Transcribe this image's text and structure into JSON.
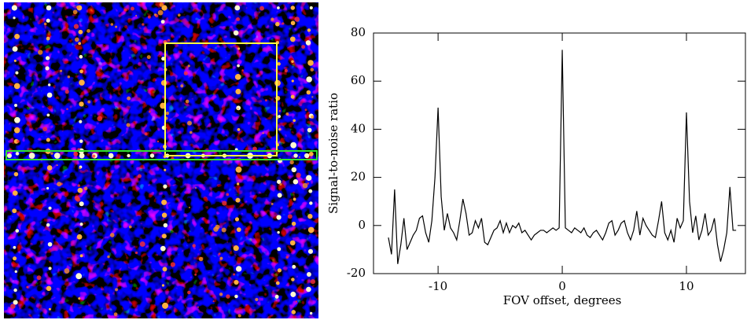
{
  "chart_data": {
    "type": "line",
    "xlabel": "FOV offset, degrees",
    "ylabel": "Signal-to-noise ratio",
    "color": "#000000",
    "xlim": [
      -15.2,
      14.75
    ],
    "xticks": [
      -10,
      0,
      10
    ],
    "ylim": [
      -20,
      80
    ],
    "yticks": [
      -20,
      0,
      20,
      40,
      60,
      80
    ],
    "x": [
      -14.0,
      -13.75,
      -13.5,
      -13.25,
      -13.0,
      -12.75,
      -12.5,
      -12.25,
      -12.0,
      -11.75,
      -11.5,
      -11.25,
      -11.0,
      -10.75,
      -10.5,
      -10.25,
      -10.0,
      -9.75,
      -9.5,
      -9.25,
      -9.0,
      -8.75,
      -8.5,
      -8.25,
      -8.0,
      -7.75,
      -7.5,
      -7.25,
      -7.0,
      -6.75,
      -6.5,
      -6.25,
      -6.0,
      -5.75,
      -5.5,
      -5.25,
      -5.0,
      -4.75,
      -4.5,
      -4.25,
      -4.0,
      -3.75,
      -3.5,
      -3.25,
      -3.0,
      -2.75,
      -2.5,
      -2.25,
      -2.0,
      -1.75,
      -1.5,
      -1.25,
      -1.0,
      -0.75,
      -0.5,
      -0.25,
      0.0,
      0.25,
      0.5,
      0.75,
      1.0,
      1.25,
      1.5,
      1.75,
      2.0,
      2.25,
      2.5,
      2.75,
      3.0,
      3.25,
      3.5,
      3.75,
      4.0,
      4.25,
      4.5,
      4.75,
      5.0,
      5.25,
      5.5,
      5.75,
      6.0,
      6.25,
      6.5,
      6.75,
      7.0,
      7.25,
      7.5,
      7.75,
      8.0,
      8.25,
      8.5,
      8.75,
      9.0,
      9.25,
      9.5,
      9.75,
      10.0,
      10.25,
      10.5,
      10.75,
      11.0,
      11.25,
      11.5,
      11.75,
      12.0,
      12.25,
      12.5,
      12.75,
      13.0,
      13.25,
      13.5,
      13.75,
      14.0
    ],
    "values": [
      -5,
      -12,
      15,
      -16,
      -8,
      3,
      -10,
      -7,
      -4,
      -2,
      3,
      4,
      -3,
      -7,
      2,
      20,
      49,
      12,
      -2,
      5,
      -1,
      -3,
      -6,
      2,
      11,
      5,
      -4,
      -3,
      2,
      -1,
      3,
      -7,
      -8,
      -5,
      -2,
      -1,
      2,
      -3,
      1,
      -3,
      0,
      -1,
      1,
      -3,
      -2,
      -4,
      -6,
      -4,
      -3,
      -2,
      -2,
      -3,
      -2,
      -1,
      -2,
      -1,
      73,
      -1,
      -2,
      -3,
      -1,
      -2,
      -3,
      -1,
      -4,
      -5,
      -3,
      -2,
      -4,
      -6,
      -3,
      1,
      2,
      -4,
      -2,
      1,
      2,
      -3,
      -6,
      -2,
      6,
      -4,
      3,
      0,
      -2,
      -4,
      -5,
      2,
      10,
      -3,
      -6,
      -2,
      -7,
      3,
      -1,
      2,
      47,
      10,
      -3,
      4,
      -6,
      -2,
      5,
      -4,
      -2,
      3,
      -8,
      -15,
      -10,
      -3,
      16,
      -2,
      -2
    ]
  }
}
